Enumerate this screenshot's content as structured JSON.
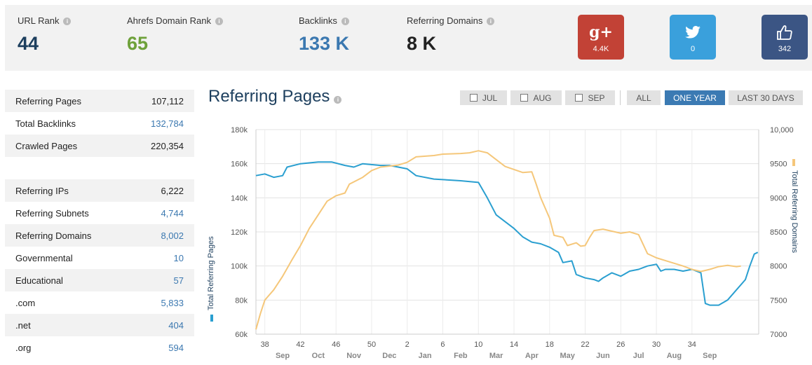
{
  "stats": {
    "url_rank": {
      "label": "URL Rank",
      "value": "44",
      "color": "#1d3f5e"
    },
    "domain_rank": {
      "label": "Ahrefs Domain Rank",
      "value": "65",
      "color": "#6ea13a"
    },
    "backlinks": {
      "label": "Backlinks",
      "value": "133 K",
      "color": "#3b78b0"
    },
    "referring_domains": {
      "label": "Referring Domains",
      "value": "8 K",
      "color": "#222222"
    }
  },
  "social": {
    "gplus": {
      "glyph": "g+",
      "count": "4.4K",
      "color": "#c24236"
    },
    "twitter": {
      "glyph": "twitter-bird",
      "count": "0",
      "color": "#3aa0dc"
    },
    "facebook": {
      "glyph": "thumbs-up",
      "count": "342",
      "color": "#3b5584"
    }
  },
  "left_table": [
    {
      "label": "Referring Pages",
      "value": "107,112",
      "link": false
    },
    {
      "label": "Total Backlinks",
      "value": "132,784",
      "link": true
    },
    {
      "label": "Crawled Pages",
      "value": "220,354",
      "link": false
    },
    {
      "label": "",
      "value": "",
      "link": false
    },
    {
      "label": "Referring IPs",
      "value": "6,222",
      "link": false
    },
    {
      "label": "Referring Subnets",
      "value": "4,744",
      "link": true
    },
    {
      "label": "Referring Domains",
      "value": "8,002",
      "link": true
    },
    {
      "label": "Governmental",
      "value": "10",
      "link": true
    },
    {
      "label": "Educational",
      "value": "57",
      "link": true
    },
    {
      "label": ".com",
      "value": "5,833",
      "link": true
    },
    {
      "label": ".net",
      "value": "404",
      "link": true
    },
    {
      "label": ".org",
      "value": "594",
      "link": true
    }
  ],
  "chart_title": "Referring Pages",
  "buttons": {
    "jul": "JUL",
    "aug": "AUG",
    "sep": "SEP",
    "all": "ALL",
    "one_year": "ONE YEAR",
    "last30": "LAST 30 DAYS"
  },
  "chart_data": {
    "type": "line",
    "ylabel_left": "Total Referring Pages",
    "ylabel_right": "Total Referring Domains",
    "y_left_ticks": [
      "60k",
      "80k",
      "100k",
      "120k",
      "140k",
      "160k",
      "180k"
    ],
    "y_left_range": [
      60000,
      180000
    ],
    "y_right_ticks": [
      "7000",
      "7500",
      "8000",
      "8500",
      "9000",
      "9500",
      "10,000"
    ],
    "y_right_range": [
      7000,
      10000
    ],
    "x_week_ticks": [
      "38",
      "42",
      "46",
      "50",
      "2",
      "6",
      "10",
      "14",
      "18",
      "22",
      "26",
      "30",
      "34"
    ],
    "x_month_ticks": [
      "Sep",
      "Oct",
      "Nov",
      "Dec",
      "Jan",
      "Feb",
      "Mar",
      "Apr",
      "May",
      "Jun",
      "Jul",
      "Aug",
      "Sep"
    ],
    "grid": true,
    "series": [
      {
        "name": "Total Referring Pages",
        "axis": "left",
        "color": "#2a9fd0",
        "points": [
          [
            37,
            153000
          ],
          [
            38,
            154000
          ],
          [
            39,
            152000
          ],
          [
            40,
            153000
          ],
          [
            40.5,
            158000
          ],
          [
            42,
            160000
          ],
          [
            44,
            161000
          ],
          [
            45.5,
            161000
          ],
          [
            47,
            159000
          ],
          [
            48,
            158000
          ],
          [
            49,
            160000
          ],
          [
            51,
            159000
          ],
          [
            52,
            159000
          ],
          [
            53,
            158000
          ],
          [
            54,
            157000
          ],
          [
            55,
            153000
          ],
          [
            57,
            151000
          ],
          [
            60,
            150000
          ],
          [
            62,
            149000
          ],
          [
            63,
            140000
          ],
          [
            64,
            130000
          ],
          [
            66,
            122000
          ],
          [
            67,
            117000
          ],
          [
            68,
            114000
          ],
          [
            69,
            113000
          ],
          [
            70,
            111000
          ],
          [
            71,
            108000
          ],
          [
            71.5,
            102000
          ],
          [
            72.5,
            103000
          ],
          [
            73,
            95000
          ],
          [
            74,
            93000
          ],
          [
            75,
            92000
          ],
          [
            75.5,
            91000
          ],
          [
            76,
            93000
          ],
          [
            77,
            96000
          ],
          [
            78,
            94000
          ],
          [
            79,
            97000
          ],
          [
            80,
            98000
          ],
          [
            81,
            100000
          ],
          [
            82,
            101000
          ],
          [
            82.5,
            97000
          ],
          [
            83,
            98000
          ],
          [
            84,
            98000
          ],
          [
            85,
            97000
          ],
          [
            86,
            98000
          ],
          [
            87,
            96000
          ],
          [
            87.5,
            78000
          ],
          [
            88,
            77000
          ],
          [
            89,
            77000
          ],
          [
            90,
            80000
          ],
          [
            91,
            86000
          ],
          [
            92,
            92000
          ],
          [
            92.5,
            100000
          ],
          [
            93,
            107000
          ],
          [
            93.4,
            108000
          ]
        ]
      },
      {
        "name": "Total Referring Domains",
        "axis": "right",
        "color": "#f5c77a",
        "points": [
          [
            37,
            7070
          ],
          [
            37.5,
            7300
          ],
          [
            38,
            7500
          ],
          [
            39,
            7650
          ],
          [
            40,
            7850
          ],
          [
            41,
            8080
          ],
          [
            42,
            8300
          ],
          [
            43,
            8550
          ],
          [
            44,
            8750
          ],
          [
            45,
            8950
          ],
          [
            46,
            9030
          ],
          [
            47,
            9070
          ],
          [
            47.5,
            9200
          ],
          [
            49,
            9300
          ],
          [
            50,
            9400
          ],
          [
            51,
            9450
          ],
          [
            53,
            9480
          ],
          [
            54,
            9520
          ],
          [
            55,
            9600
          ],
          [
            57,
            9620
          ],
          [
            58,
            9640
          ],
          [
            60,
            9650
          ],
          [
            61,
            9660
          ],
          [
            62,
            9690
          ],
          [
            63,
            9660
          ],
          [
            64,
            9560
          ],
          [
            65,
            9460
          ],
          [
            67,
            9370
          ],
          [
            68,
            9380
          ],
          [
            68.5,
            9200
          ],
          [
            69,
            9000
          ],
          [
            70,
            8700
          ],
          [
            70.5,
            8450
          ],
          [
            71.5,
            8420
          ],
          [
            72,
            8300
          ],
          [
            73,
            8340
          ],
          [
            73.5,
            8290
          ],
          [
            74,
            8300
          ],
          [
            74.5,
            8420
          ],
          [
            75,
            8520
          ],
          [
            76,
            8540
          ],
          [
            77,
            8510
          ],
          [
            78,
            8480
          ],
          [
            79,
            8500
          ],
          [
            80,
            8460
          ],
          [
            81,
            8180
          ],
          [
            82,
            8120
          ],
          [
            83,
            8080
          ],
          [
            84,
            8040
          ],
          [
            85,
            8000
          ],
          [
            86,
            7950
          ],
          [
            87,
            7920
          ],
          [
            88,
            7950
          ],
          [
            89,
            7990
          ],
          [
            90,
            8010
          ],
          [
            91,
            7990
          ],
          [
            91.5,
            8000
          ]
        ]
      }
    ]
  }
}
